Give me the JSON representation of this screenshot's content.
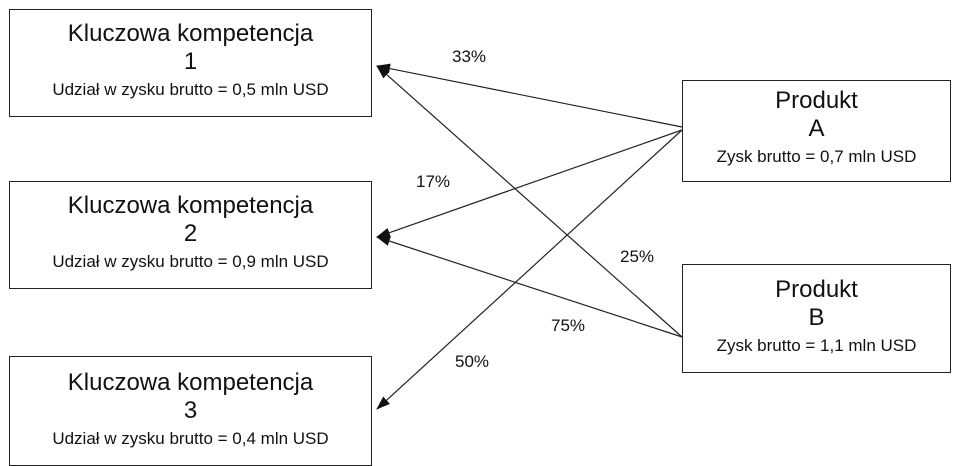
{
  "competencies": [
    {
      "title": "Kluczowa kompetencja",
      "number": "1",
      "share": "Udział w zysku brutto = 0,5 mln USD"
    },
    {
      "title": "Kluczowa kompetencja",
      "number": "2",
      "share": "Udział w zysku brutto = 0,9 mln USD"
    },
    {
      "title": "Kluczowa kompetencja",
      "number": "3",
      "share": "Udział w zysku brutto = 0,4 mln USD"
    }
  ],
  "products": [
    {
      "title": "Produkt",
      "letter": "A",
      "profit": "Zysk brutto = 0,7 mln USD"
    },
    {
      "title": "Produkt",
      "letter": "B",
      "profit": "Zysk brutto = 1,1 mln USD"
    }
  ],
  "links": [
    {
      "from": "Produkt A",
      "to": "Kluczowa kompetencja 1",
      "label": "33%"
    },
    {
      "from": "Produkt A",
      "to": "Kluczowa kompetencja 2",
      "label": "17%"
    },
    {
      "from": "Produkt A",
      "to": "Kluczowa kompetencja 3",
      "label": "50%"
    },
    {
      "from": "Produkt B",
      "to": "Kluczowa kompetencja 1",
      "label": "25%"
    },
    {
      "from": "Produkt B",
      "to": "Kluczowa kompetencja 2",
      "label": "75%"
    }
  ]
}
